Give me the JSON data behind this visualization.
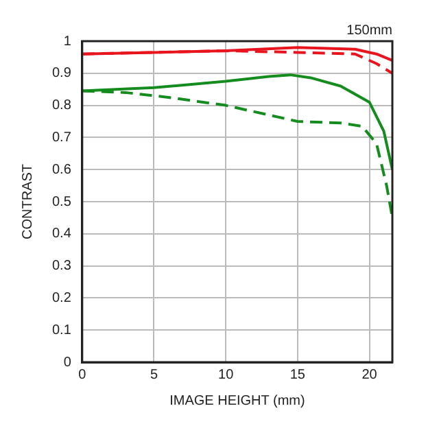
{
  "chart_data": {
    "type": "line",
    "xlabel": "IMAGE HEIGHT (mm)",
    "ylabel": "CONTRAST",
    "annotations": [
      "150mm"
    ],
    "xlim": [
      0,
      21.6
    ],
    "xticks": [
      0,
      5,
      10,
      15,
      20
    ],
    "ylim": [
      0,
      1
    ],
    "yticks": [
      0,
      0.1,
      0.2,
      0.3,
      0.4,
      0.5,
      0.6,
      0.7,
      0.8,
      0.9,
      1
    ],
    "grid": true,
    "legend": false,
    "marker": "none",
    "series": [
      {
        "color": "#e8141e",
        "line_style": "solid",
        "x": [
          0,
          5,
          10,
          15,
          19,
          20.5,
          21.6
        ],
        "values": [
          0.96,
          0.965,
          0.97,
          0.98,
          0.975,
          0.96,
          0.94
        ]
      },
      {
        "color": "#e8141e",
        "line_style": "dashed",
        "x": [
          0,
          5,
          10,
          15,
          19,
          20.5,
          21.6
        ],
        "values": [
          0.96,
          0.965,
          0.97,
          0.965,
          0.96,
          0.93,
          0.9
        ]
      },
      {
        "color": "#148c1e",
        "line_style": "solid",
        "x": [
          0,
          5,
          10,
          13,
          14.5,
          16,
          18,
          20,
          21,
          21.6
        ],
        "values": [
          0.845,
          0.855,
          0.875,
          0.89,
          0.895,
          0.885,
          0.86,
          0.81,
          0.72,
          0.6
        ]
      },
      {
        "color": "#148c1e",
        "line_style": "dashed",
        "x": [
          0,
          3,
          6,
          10,
          13,
          15,
          18,
          19.5,
          20.5,
          21.2,
          21.6
        ],
        "values": [
          0.845,
          0.84,
          0.825,
          0.8,
          0.77,
          0.75,
          0.745,
          0.735,
          0.68,
          0.55,
          0.45
        ]
      }
    ]
  }
}
